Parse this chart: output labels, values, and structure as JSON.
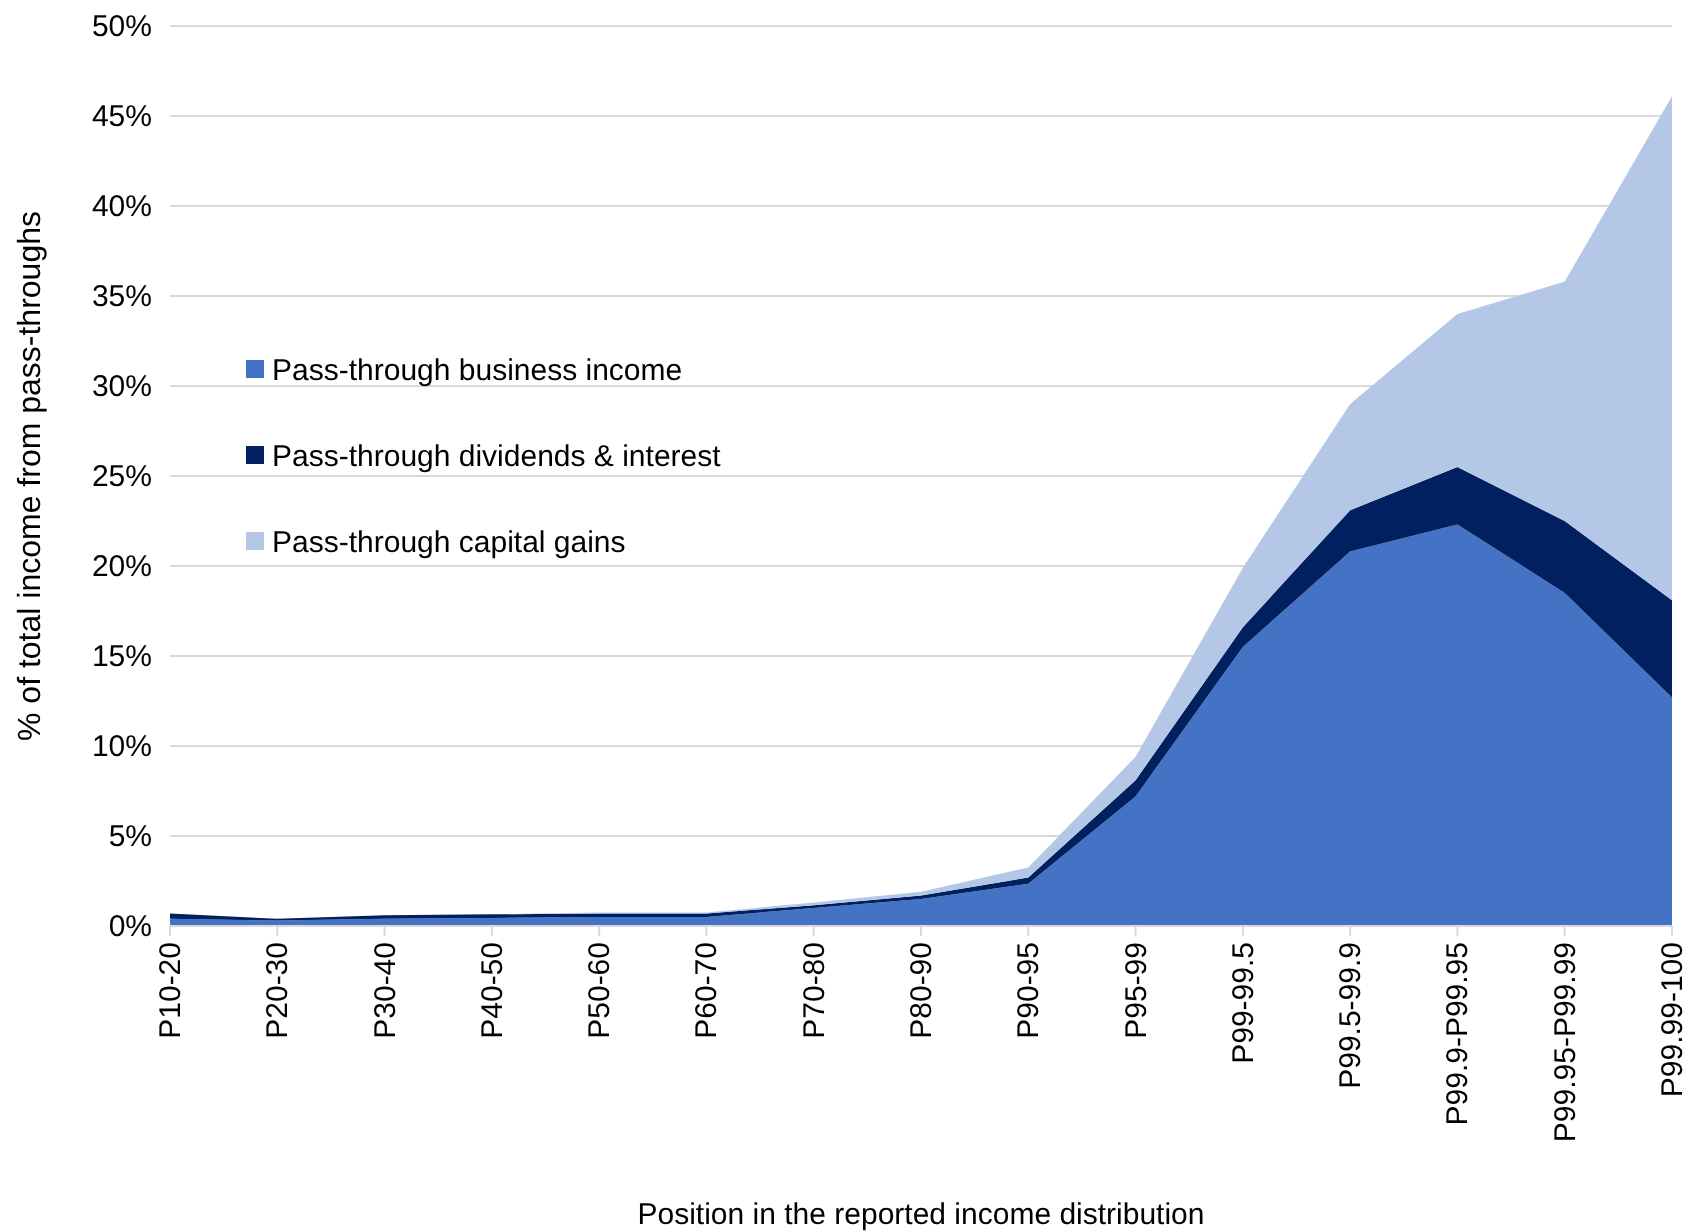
{
  "chart_data": {
    "type": "area",
    "stacked": true,
    "xlabel": "Position in the reported income distribution",
    "ylabel": "% of total income from pass-throughs",
    "categories": [
      "P10-20",
      "P20-30",
      "P30-40",
      "P40-50",
      "P50-60",
      "P60-70",
      "P70-80",
      "P80-90",
      "P90-95",
      "P95-99",
      "P99-99.5",
      "P99.5-99.9",
      "P99.9-P99.95",
      "P99.95-P99.99",
      "P99.99-100"
    ],
    "series": [
      {
        "name": "Pass-through business income",
        "color": "#4472c4",
        "values": [
          0.4,
          0.3,
          0.4,
          0.45,
          0.5,
          0.5,
          1.0,
          1.5,
          2.35,
          7.2,
          15.5,
          20.8,
          22.3,
          18.5,
          12.7
        ]
      },
      {
        "name": "Pass-through dividends & interest",
        "color": "#002060",
        "values": [
          0.3,
          0.1,
          0.2,
          0.2,
          0.2,
          0.2,
          0.15,
          0.2,
          0.35,
          0.9,
          1.1,
          2.3,
          3.2,
          4.0,
          5.4
        ]
      },
      {
        "name": "Pass-through capital gains",
        "color": "#b4c7e7",
        "values": [
          0,
          0,
          0,
          0,
          0.05,
          0.05,
          0.15,
          0.2,
          0.55,
          1.3,
          3.3,
          5.9,
          8.5,
          13.3,
          28.0
        ]
      }
    ],
    "ylim": [
      0,
      50
    ],
    "yticks": [
      {
        "value": 0,
        "label": "0%"
      },
      {
        "value": 5,
        "label": "5%"
      },
      {
        "value": 10,
        "label": "10%"
      },
      {
        "value": 15,
        "label": "15%"
      },
      {
        "value": 20,
        "label": "20%"
      },
      {
        "value": 25,
        "label": "25%"
      },
      {
        "value": 30,
        "label": "30%"
      },
      {
        "value": 35,
        "label": "35%"
      },
      {
        "value": 40,
        "label": "40%"
      },
      {
        "value": 45,
        "label": "45%"
      },
      {
        "value": 50,
        "label": "50%"
      }
    ],
    "grid": "y",
    "legend": "left"
  }
}
